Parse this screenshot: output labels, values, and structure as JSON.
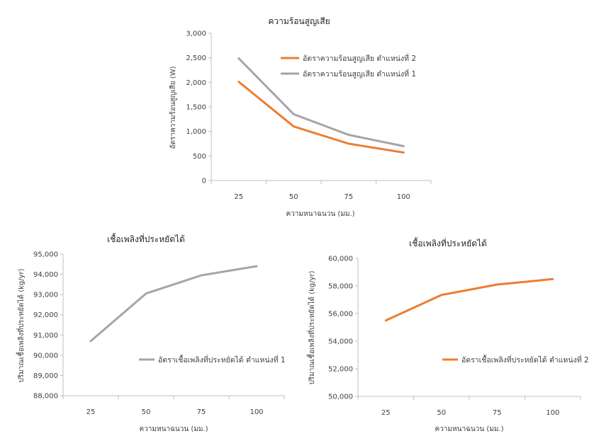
{
  "chart_data": [
    {
      "type": "line",
      "title": "ความร้อนสูญเสีย",
      "xlabel": "ความหนาฉนวน (มม.)",
      "ylabel": "อัตราความร้อนสูญเสีย (W)",
      "categories": [
        "25",
        "50",
        "75",
        "100"
      ],
      "ylim": [
        0,
        3000
      ],
      "yticks": [
        "0",
        "500",
        "1,000",
        "1,500",
        "2,000",
        "2,500",
        "3,000"
      ],
      "legend_position": "top-right",
      "grid": false,
      "series": [
        {
          "name": "อัตราความร้อนสูญเสีย ตำแหน่งที่ 2",
          "color": "#ed7d31",
          "values": [
            2010,
            1100,
            750,
            570
          ]
        },
        {
          "name": "อัตราความร้อนสูญเสีย ตำแหน่งที่ 1",
          "color": "#a5a5a5",
          "values": [
            2490,
            1350,
            930,
            700
          ]
        }
      ]
    },
    {
      "type": "line",
      "title": "เชื้อเพลิงที่ประหยัดได้",
      "xlabel": "ความหนาฉนวน (มม.)",
      "ylabel": "ปริมาณเชื้อเพลิงที่ประหยัดได้ (kg/yr)",
      "categories": [
        "25",
        "50",
        "75",
        "100"
      ],
      "ylim": [
        88000,
        95000
      ],
      "yticks": [
        "88,000",
        "89,000",
        "90,000",
        "91,000",
        "92,000",
        "93,000",
        "94,000",
        "95,000"
      ],
      "legend_position": "bottom-right",
      "grid": false,
      "series": [
        {
          "name": "อัตราเชื้อเพลิงที่ประหยัดได้ ตำแหน่งที่ 1",
          "color": "#a5a5a5",
          "values": [
            90700,
            93050,
            93950,
            94400
          ]
        }
      ]
    },
    {
      "type": "line",
      "title": "เชื้อเพลิงที่ประหยัดได้",
      "xlabel": "ความหนาฉนวน (มม.)",
      "ylabel": "ปริมาณเชื้อเพลิงที่ประหยัดได้ (kg/yr)",
      "categories": [
        "25",
        "50",
        "75",
        "100"
      ],
      "ylim": [
        50000,
        60000
      ],
      "yticks": [
        "50,000",
        "52,000",
        "54,000",
        "56,000",
        "58,000",
        "60,000"
      ],
      "legend_position": "bottom-right",
      "grid": false,
      "series": [
        {
          "name": "อัตราเชื้อเพลิงที่ประหยัดได้ ตำแหน่งที่ 2",
          "color": "#ed7d31",
          "values": [
            55500,
            57350,
            58100,
            58500
          ]
        }
      ]
    }
  ]
}
